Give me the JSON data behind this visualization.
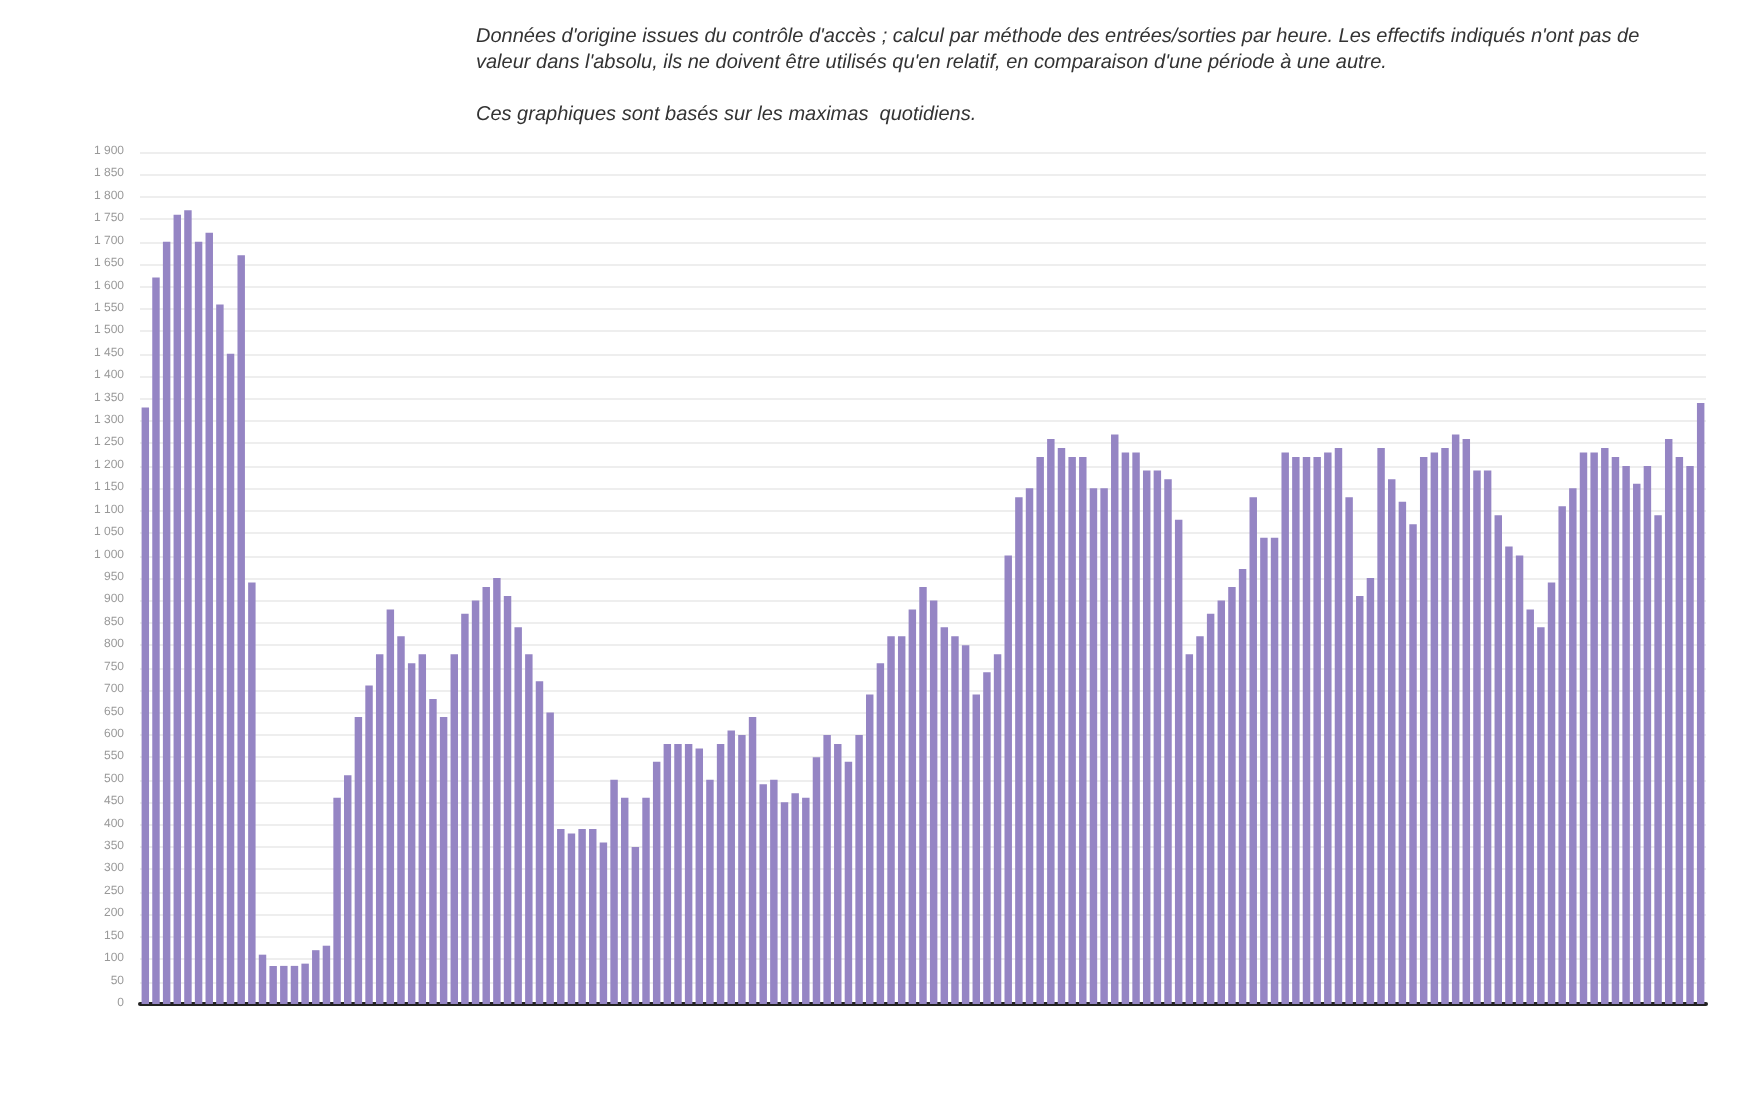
{
  "chart_data": {
    "type": "bar",
    "annotations": [
      "Données d'origine issues du contrôle d'accès ; calcul par méthode des entrées/sorties par heure. Les effectifs indiqués n'ont pas de valeur dans l'absolu, ils ne doivent être utilisés qu'en relatif, en comparaison d'une période à une autre.",
      "Ces graphiques sont basés sur les maximas  quotidiens."
    ],
    "categories": [
      null,
      null,
      null,
      null,
      null,
      null,
      null,
      null,
      null,
      null,
      null,
      null,
      null,
      null,
      null,
      null,
      null,
      null,
      null,
      null,
      null,
      null,
      null,
      null,
      null,
      null,
      null,
      null,
      null,
      null,
      null,
      null,
      null,
      null,
      null,
      null,
      null,
      null,
      null,
      null,
      null,
      null,
      null,
      null,
      null,
      null,
      null,
      null,
      null,
      null,
      null,
      null,
      null,
      null,
      null,
      null,
      null,
      null,
      null,
      null,
      null,
      null,
      null,
      null,
      null,
      null,
      null,
      null,
      null,
      null,
      null,
      null,
      null,
      null,
      null,
      null,
      null,
      null,
      null,
      null,
      null,
      null,
      null,
      null,
      null,
      null,
      null,
      null,
      null,
      null,
      null,
      null,
      null,
      null,
      null,
      null,
      null,
      null,
      null,
      null,
      null,
      null,
      null,
      null,
      null,
      null,
      null,
      null,
      null,
      null,
      null,
      null,
      null,
      null,
      null,
      null,
      null,
      null,
      null,
      null,
      null,
      null,
      null,
      null,
      null,
      null,
      null,
      null,
      null,
      null,
      null,
      null,
      null,
      null,
      null,
      null,
      null,
      null,
      null,
      null,
      null,
      null,
      null,
      null,
      null,
      null,
      null
    ],
    "values": [
      1330,
      1620,
      1700,
      1760,
      1770,
      1700,
      1720,
      1560,
      1450,
      1670,
      940,
      110,
      85,
      85,
      85,
      90,
      120,
      130,
      460,
      510,
      640,
      710,
      780,
      880,
      820,
      760,
      780,
      680,
      640,
      780,
      870,
      900,
      930,
      950,
      910,
      840,
      780,
      720,
      650,
      390,
      380,
      390,
      390,
      360,
      500,
      460,
      350,
      460,
      540,
      580,
      580,
      580,
      570,
      500,
      580,
      610,
      600,
      640,
      490,
      500,
      450,
      470,
      460,
      550,
      600,
      580,
      540,
      600,
      690,
      760,
      820,
      820,
      880,
      930,
      900,
      840,
      820,
      800,
      690,
      740,
      780,
      1000,
      1130,
      1150,
      1220,
      1260,
      1240,
      1220,
      1220,
      1150,
      1150,
      1270,
      1230,
      1230,
      1190,
      1190,
      1170,
      1080,
      780,
      820,
      870,
      900,
      930,
      970,
      1130,
      1040,
      1040,
      1230,
      1220,
      1220,
      1220,
      1230,
      1240,
      1130,
      910,
      950,
      1240,
      1170,
      1120,
      1070,
      1220,
      1230,
      1240,
      1270,
      1260,
      1190,
      1190,
      1090,
      1020,
      1000,
      880,
      840,
      940,
      1110,
      1150,
      1230,
      1230,
      1240,
      1220,
      1200,
      1160,
      1200,
      1090,
      1260,
      1220,
      1200,
      1340
    ],
    "color": "#9585c4",
    "ylim": [
      0,
      1900
    ],
    "yticks": [
      0,
      50,
      100,
      150,
      200,
      250,
      300,
      350,
      400,
      450,
      500,
      550,
      600,
      650,
      700,
      750,
      800,
      850,
      900,
      950,
      {
        "value": 1000,
        "label": "1 000"
      },
      {
        "value": 1050,
        "label": "1 050"
      },
      {
        "value": 1100,
        "label": "1 100"
      },
      {
        "value": 1150,
        "label": "1 150"
      },
      {
        "value": 1200,
        "label": "1 200"
      },
      {
        "value": 1250,
        "label": "1 250"
      },
      {
        "value": 1300,
        "label": "1 300"
      },
      {
        "value": 1350,
        "label": "1 350"
      },
      {
        "value": 1400,
        "label": "1 400"
      },
      {
        "value": 1450,
        "label": "1 450"
      },
      {
        "value": 1500,
        "label": "1 500"
      },
      {
        "value": 1550,
        "label": "1 550"
      },
      {
        "value": 1600,
        "label": "1 600"
      },
      {
        "value": 1650,
        "label": "1 650"
      },
      {
        "value": 1700,
        "label": "1 700"
      },
      {
        "value": 1750,
        "label": "1 750"
      },
      {
        "value": 1800,
        "label": "1 800"
      },
      {
        "value": 1850,
        "label": "1 850"
      },
      {
        "value": 1900,
        "label": "1 900"
      }
    ],
    "grid": "y"
  }
}
